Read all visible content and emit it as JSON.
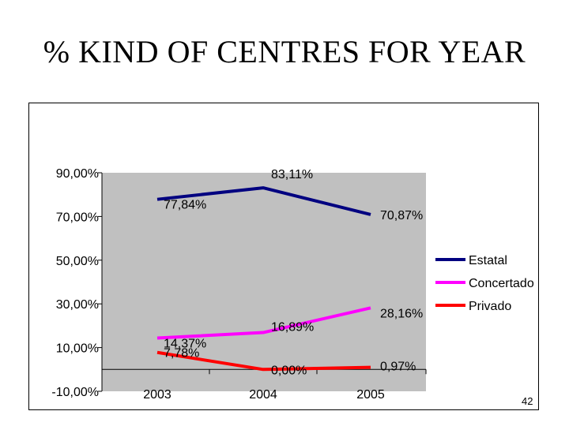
{
  "slide": {
    "title": "% KIND OF CENTRES FOR YEAR",
    "page_number": "42"
  },
  "chart_data": {
    "type": "line",
    "title": "",
    "xlabel": "",
    "ylabel": "",
    "categories": [
      "2003",
      "2004",
      "2005"
    ],
    "ylim": [
      -0.1,
      0.9
    ],
    "y_ticks": [
      {
        "value": -0.1,
        "label": "-10,00%"
      },
      {
        "value": 0.1,
        "label": "10,00%"
      },
      {
        "value": 0.3,
        "label": "30,00%"
      },
      {
        "value": 0.5,
        "label": "50,00%"
      },
      {
        "value": 0.7,
        "label": "70,00%"
      },
      {
        "value": 0.9,
        "label": "90,00%"
      }
    ],
    "series": [
      {
        "name": "Estatal",
        "color": "#000080",
        "values": [
          0.7784,
          0.8311,
          0.7087
        ],
        "labels": [
          "77,84%",
          "83,11%",
          "70,87%"
        ]
      },
      {
        "name": "Concertado",
        "color": "#ff00ff",
        "values": [
          0.1437,
          0.1689,
          0.2816
        ],
        "labels": [
          "14,37%",
          "16,89%",
          "28,16%"
        ]
      },
      {
        "name": "Privado",
        "color": "#ff0000",
        "values": [
          0.0778,
          0.0,
          0.0097
        ],
        "labels": [
          "7,78%",
          "0,00%",
          "0,97%"
        ]
      }
    ],
    "plot_background": "#c0c0c0",
    "grid": false,
    "legend_position": "right"
  }
}
